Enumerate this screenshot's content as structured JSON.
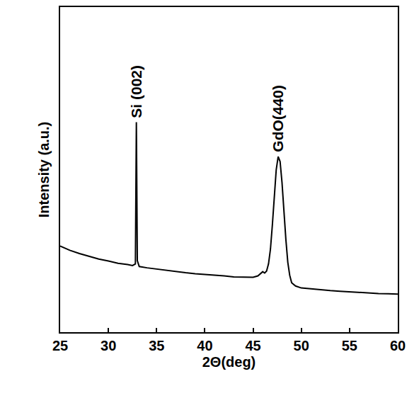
{
  "chart_data": {
    "type": "line",
    "x_label": "2Θ(deg)",
    "y_label": "Intensity (a.u.)",
    "color": "#000000",
    "x": [
      25,
      26,
      27,
      28,
      29,
      30,
      31,
      32,
      32.5,
      32.8,
      32.9,
      33.0,
      33.2,
      34,
      35,
      36,
      37,
      38,
      39,
      40,
      41,
      42,
      43,
      44,
      44.5,
      45,
      45.5,
      45.8,
      46.0,
      46.2,
      46.4,
      46.6,
      46.8,
      47.0,
      47.2,
      47.4,
      47.6,
      47.8,
      48.0,
      48.2,
      48.4,
      48.6,
      48.8,
      49.0,
      49.4,
      50,
      51,
      52,
      53,
      54,
      55,
      56,
      57,
      58,
      59,
      60
    ],
    "values": [
      26.5,
      25.2,
      24.2,
      23.3,
      22.5,
      21.9,
      21.2,
      20.8,
      20.5,
      21.0,
      64.6,
      22.0,
      20.2,
      19.8,
      19.4,
      19.0,
      18.7,
      18.3,
      18.0,
      17.8,
      17.5,
      17.3,
      17.0,
      16.9,
      16.8,
      16.9,
      17.3,
      18.0,
      18.6,
      18.2,
      18.8,
      21.0,
      25.5,
      33.0,
      42.0,
      50.0,
      54.0,
      52.5,
      46.0,
      37.0,
      28.5,
      21.5,
      17.5,
      15.2,
      14.2,
      13.6,
      13.3,
      13.0,
      12.8,
      12.6,
      12.4,
      12.2,
      12.0,
      11.9,
      11.8,
      11.7
    ],
    "xlim": [
      25,
      60
    ],
    "xticks": [
      25,
      30,
      35,
      40,
      45,
      50,
      55,
      60
    ],
    "ylim": [
      0,
      100
    ],
    "tick_labels": "x",
    "grid": false,
    "annotations": [
      {
        "text": "Si (002)",
        "x": 32.9,
        "y": 64.6
      },
      {
        "text": "GdO(440)",
        "x": 47.6,
        "y": 54.0
      }
    ]
  }
}
